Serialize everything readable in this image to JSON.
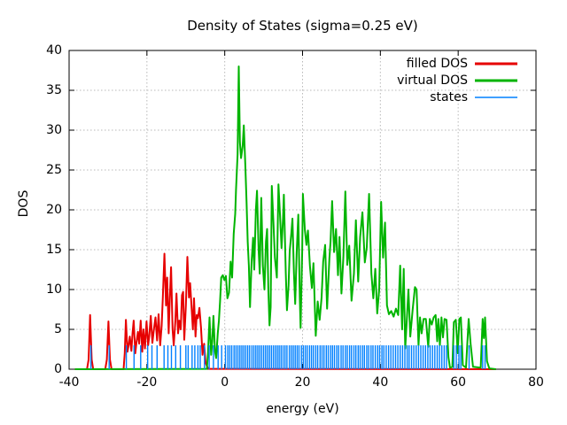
{
  "title": "Density of States (sigma=0.25 eV)",
  "axes": {
    "xlabel": "energy (eV)",
    "ylabel": "DOS",
    "xlim": [
      -40,
      80
    ],
    "ylim": [
      0,
      40
    ],
    "xticks": [
      -40,
      -20,
      0,
      20,
      40,
      60,
      80
    ],
    "yticks": [
      0,
      5,
      10,
      15,
      20,
      25,
      30,
      35,
      40
    ],
    "grid": true,
    "grid_color": "#b8b8b8",
    "border_color": "#000000"
  },
  "legend": {
    "position": "top-right-inside",
    "entries": [
      {
        "label": "filled DOS",
        "color": "#e60000",
        "thickness": 3
      },
      {
        "label": "virtual DOS",
        "color": "#00b400",
        "thickness": 3
      },
      {
        "label": "states",
        "color": "#0080ff",
        "thickness": 1.4
      }
    ]
  },
  "chart_data": {
    "type": "line",
    "title": "Density of States (sigma=0.25 eV)",
    "xlabel": "energy (eV)",
    "ylabel": "DOS",
    "xlim": [
      -40,
      80
    ],
    "ylim": [
      0,
      40
    ],
    "legend_position": "top-right",
    "grid": true,
    "series": [
      {
        "name": "filled DOS",
        "color": "#e60000",
        "width": 2,
        "points": [
          [
            -38.5,
            0
          ],
          [
            -35.4,
            0
          ],
          [
            -35.0,
            1.2
          ],
          [
            -34.6,
            6.8
          ],
          [
            -34.2,
            1.2
          ],
          [
            -33.8,
            0
          ],
          [
            -30.7,
            0
          ],
          [
            -30.3,
            1.2
          ],
          [
            -29.9,
            6.0
          ],
          [
            -29.5,
            1.2
          ],
          [
            -29.1,
            0
          ],
          [
            -26.0,
            0
          ],
          [
            -25.7,
            2.0
          ],
          [
            -25.4,
            6.2
          ],
          [
            -25.0,
            2.2
          ],
          [
            -24.7,
            3.0
          ],
          [
            -24.4,
            4.1
          ],
          [
            -24.0,
            2.3
          ],
          [
            -23.7,
            4.5
          ],
          [
            -23.4,
            6.1
          ],
          [
            -23.0,
            2.0
          ],
          [
            -22.7,
            3.3
          ],
          [
            -22.3,
            4.7
          ],
          [
            -22.0,
            3.2
          ],
          [
            -21.6,
            6.1
          ],
          [
            -21.2,
            2.2
          ],
          [
            -20.9,
            5.0
          ],
          [
            -20.5,
            2.6
          ],
          [
            -20.1,
            6.0
          ],
          [
            -19.7,
            3.0
          ],
          [
            -19.4,
            4.2
          ],
          [
            -19.0,
            6.7
          ],
          [
            -18.6,
            3.3
          ],
          [
            -18.2,
            5.0
          ],
          [
            -17.8,
            6.5
          ],
          [
            -17.4,
            3.6
          ],
          [
            -17.0,
            6.9
          ],
          [
            -16.6,
            3.0
          ],
          [
            -16.2,
            5.5
          ],
          [
            -15.9,
            9.0
          ],
          [
            -15.5,
            14.5
          ],
          [
            -15.1,
            8.0
          ],
          [
            -14.8,
            11.5
          ],
          [
            -14.4,
            4.5
          ],
          [
            -14.1,
            9.0
          ],
          [
            -13.8,
            12.8
          ],
          [
            -13.4,
            5.0
          ],
          [
            -13.1,
            3.0
          ],
          [
            -12.7,
            6.0
          ],
          [
            -12.4,
            9.5
          ],
          [
            -12.0,
            4.5
          ],
          [
            -11.7,
            6.1
          ],
          [
            -11.3,
            5.0
          ],
          [
            -11.0,
            9.3
          ],
          [
            -10.7,
            9.7
          ],
          [
            -10.4,
            3.7
          ],
          [
            -10.0,
            8.0
          ],
          [
            -9.6,
            14.1
          ],
          [
            -9.2,
            9.0
          ],
          [
            -8.9,
            10.8
          ],
          [
            -8.6,
            8.4
          ],
          [
            -8.2,
            5.0
          ],
          [
            -7.9,
            8.9
          ],
          [
            -7.5,
            4.1
          ],
          [
            -7.2,
            6.8
          ],
          [
            -6.9,
            6.4
          ],
          [
            -6.5,
            7.7
          ],
          [
            -6.1,
            5.2
          ],
          [
            -5.7,
            1.8
          ],
          [
            -5.3,
            3.2
          ],
          [
            -4.9,
            0.8
          ],
          [
            -4.4,
            0.2
          ],
          [
            -4.0,
            0.05
          ],
          [
            69.7,
            0
          ]
        ]
      },
      {
        "name": "virtual DOS",
        "color": "#00b400",
        "width": 2,
        "points": [
          [
            -38.5,
            0
          ],
          [
            -4.6,
            0.05
          ],
          [
            -4.3,
            2.0
          ],
          [
            -3.9,
            6.5
          ],
          [
            -3.5,
            1.8
          ],
          [
            -3.2,
            3.5
          ],
          [
            -2.9,
            6.7
          ],
          [
            -2.5,
            2.2
          ],
          [
            -2.2,
            1.4
          ],
          [
            -1.8,
            4.5
          ],
          [
            -1.5,
            6.1
          ],
          [
            -1.2,
            8.5
          ],
          [
            -0.9,
            11.5
          ],
          [
            -0.5,
            11.8
          ],
          [
            -0.1,
            11.2
          ],
          [
            0.3,
            11.7
          ],
          [
            0.7,
            8.9
          ],
          [
            1.1,
            9.6
          ],
          [
            1.5,
            13.5
          ],
          [
            1.9,
            11.5
          ],
          [
            2.3,
            17.0
          ],
          [
            2.7,
            19.5
          ],
          [
            2.9,
            22.5
          ],
          [
            3.3,
            27.0
          ],
          [
            3.6,
            38.0
          ],
          [
            3.9,
            28.5
          ],
          [
            4.2,
            26.5
          ],
          [
            4.6,
            28.0
          ],
          [
            4.9,
            30.6
          ],
          [
            5.3,
            25.6
          ],
          [
            5.6,
            21.0
          ],
          [
            5.9,
            16.0
          ],
          [
            6.2,
            13.0
          ],
          [
            6.5,
            7.8
          ],
          [
            6.9,
            13.5
          ],
          [
            7.3,
            16.5
          ],
          [
            7.6,
            12.5
          ],
          [
            8.0,
            20.0
          ],
          [
            8.3,
            22.4
          ],
          [
            8.7,
            15.0
          ],
          [
            9.0,
            12.0
          ],
          [
            9.4,
            21.5
          ],
          [
            9.8,
            13.0
          ],
          [
            10.2,
            10.0
          ],
          [
            10.6,
            16.0
          ],
          [
            10.9,
            17.6
          ],
          [
            11.2,
            10.0
          ],
          [
            11.5,
            5.5
          ],
          [
            11.8,
            7.8
          ],
          [
            12.1,
            23.0
          ],
          [
            12.5,
            18.5
          ],
          [
            12.9,
            14.0
          ],
          [
            13.4,
            11.5
          ],
          [
            13.8,
            23.2
          ],
          [
            14.2,
            19.5
          ],
          [
            14.6,
            15.2
          ],
          [
            15.0,
            19.0
          ],
          [
            15.2,
            21.9
          ],
          [
            15.7,
            12.0
          ],
          [
            16.0,
            7.4
          ],
          [
            16.4,
            10.5
          ],
          [
            16.7,
            14.8
          ],
          [
            17.1,
            17.0
          ],
          [
            17.4,
            18.9
          ],
          [
            17.8,
            12.0
          ],
          [
            18.1,
            8.2
          ],
          [
            18.5,
            14.7
          ],
          [
            18.9,
            19.4
          ],
          [
            19.3,
            9.0
          ],
          [
            19.5,
            5.2
          ],
          [
            19.9,
            14.8
          ],
          [
            20.1,
            22.0
          ],
          [
            20.6,
            17.5
          ],
          [
            21.0,
            15.6
          ],
          [
            21.4,
            17.4
          ],
          [
            21.9,
            13.0
          ],
          [
            22.4,
            10.2
          ],
          [
            22.8,
            13.3
          ],
          [
            23.4,
            4.2
          ],
          [
            23.9,
            8.5
          ],
          [
            24.4,
            6.2
          ],
          [
            24.9,
            9.0
          ],
          [
            25.3,
            13.5
          ],
          [
            25.8,
            15.6
          ],
          [
            26.3,
            7.6
          ],
          [
            26.9,
            13.9
          ],
          [
            27.2,
            16.0
          ],
          [
            27.6,
            21.1
          ],
          [
            28.1,
            14.7
          ],
          [
            28.6,
            17.6
          ],
          [
            29.1,
            11.8
          ],
          [
            29.5,
            16.6
          ],
          [
            30.0,
            9.5
          ],
          [
            30.5,
            14.1
          ],
          [
            31.0,
            22.3
          ],
          [
            31.5,
            13.1
          ],
          [
            32.0,
            15.5
          ],
          [
            32.6,
            8.6
          ],
          [
            33.2,
            12.0
          ],
          [
            33.7,
            18.7
          ],
          [
            34.3,
            11.0
          ],
          [
            34.8,
            16.6
          ],
          [
            35.4,
            19.7
          ],
          [
            36.0,
            13.4
          ],
          [
            36.5,
            15.3
          ],
          [
            37.1,
            22.0
          ],
          [
            37.7,
            12.0
          ],
          [
            38.2,
            8.9
          ],
          [
            38.7,
            12.6
          ],
          [
            39.2,
            7.0
          ],
          [
            39.7,
            10.0
          ],
          [
            40.2,
            21.0
          ],
          [
            40.7,
            14.0
          ],
          [
            41.2,
            18.4
          ],
          [
            41.7,
            8.0
          ],
          [
            42.2,
            6.9
          ],
          [
            42.8,
            7.3
          ],
          [
            43.4,
            6.6
          ],
          [
            44.0,
            7.6
          ],
          [
            44.6,
            6.8
          ],
          [
            45.1,
            13.0
          ],
          [
            45.6,
            5.0
          ],
          [
            46.0,
            12.6
          ],
          [
            46.4,
            2.6
          ],
          [
            46.8,
            6.2
          ],
          [
            47.2,
            10.0
          ],
          [
            47.7,
            4.1
          ],
          [
            48.3,
            7.5
          ],
          [
            48.9,
            10.3
          ],
          [
            49.3,
            10.0
          ],
          [
            49.8,
            3.0
          ],
          [
            50.2,
            6.5
          ],
          [
            50.6,
            4.5
          ],
          [
            51.1,
            6.3
          ],
          [
            51.7,
            6.3
          ],
          [
            52.3,
            2.8
          ],
          [
            52.7,
            6.3
          ],
          [
            53.2,
            5.6
          ],
          [
            53.7,
            6.5
          ],
          [
            54.2,
            6.8
          ],
          [
            54.6,
            3.5
          ],
          [
            54.9,
            6.3
          ],
          [
            55.3,
            3.0
          ],
          [
            55.7,
            6.5
          ],
          [
            56.1,
            4.0
          ],
          [
            56.5,
            6.3
          ],
          [
            57.0,
            6.2
          ],
          [
            57.5,
            1.5
          ],
          [
            57.9,
            0.2
          ],
          [
            58.5,
            0.3
          ],
          [
            58.9,
            5.9
          ],
          [
            59.4,
            6.2
          ],
          [
            59.9,
            2.0
          ],
          [
            60.3,
            6.3
          ],
          [
            60.7,
            6.5
          ],
          [
            61.2,
            0.5
          ],
          [
            62.0,
            0.2
          ],
          [
            62.7,
            6.3
          ],
          [
            63.2,
            3.2
          ],
          [
            63.8,
            0.3
          ],
          [
            65.8,
            0.2
          ],
          [
            66.3,
            6.3
          ],
          [
            66.6,
            3.9
          ],
          [
            66.9,
            6.5
          ],
          [
            67.4,
            1.0
          ],
          [
            68.0,
            0.1
          ],
          [
            69.7,
            0
          ]
        ]
      }
    ],
    "impulses": {
      "name": "states",
      "color": "#0080ff",
      "width": 1.4,
      "height": 3.0,
      "filled_state_energies": [
        -34.4,
        -29.7,
        -25.3,
        -23.3,
        -21.6,
        -19.8,
        -18.7,
        -17.4,
        -15.6,
        -14.6,
        -13.7,
        -12.6,
        -11.4,
        -10.0,
        -9.4,
        -8.4,
        -7.7,
        -6.9,
        -6.3,
        -5.2
      ],
      "virtual_state_energies": [
        -4.0,
        -2.9,
        -1.7,
        -0.8,
        0.2,
        0.8,
        1.3,
        1.8,
        2.4,
        2.9,
        3.4,
        3.9,
        4.4,
        4.9,
        5.4,
        5.9,
        6.4,
        7.0,
        7.5,
        8.0,
        8.5,
        9.0,
        9.5,
        10.0,
        10.5,
        11.0,
        11.5,
        12.0,
        12.5,
        13.0,
        13.5,
        14.0,
        14.5,
        15.0,
        15.5,
        16.0,
        16.6,
        17.1,
        17.6,
        18.1,
        18.6,
        19.1,
        19.7,
        20.2,
        20.7,
        21.2,
        21.8,
        22.3,
        22.8,
        23.4,
        23.9,
        24.5,
        25.0,
        25.5,
        26.1,
        26.6,
        27.2,
        27.7,
        28.2,
        28.8,
        29.3,
        29.9,
        30.4,
        31.0,
        31.5,
        32.1,
        32.6,
        33.2,
        33.7,
        34.3,
        34.8,
        35.4,
        35.9,
        36.5,
        37.0,
        37.6,
        38.1,
        38.7,
        39.3,
        39.8,
        40.4,
        40.9,
        41.5,
        42.1,
        42.7,
        43.3,
        43.9,
        44.5,
        45.1,
        45.7,
        46.3,
        46.9,
        47.4,
        48.0,
        48.6,
        49.2,
        49.8,
        50.4,
        51.0,
        51.6,
        52.2,
        52.8,
        53.4,
        54.0,
        54.6,
        55.2,
        55.8,
        56.4,
        57.0,
        58.9,
        59.5,
        60.2,
        60.7,
        62.8,
        66.3,
        66.9
      ]
    }
  }
}
